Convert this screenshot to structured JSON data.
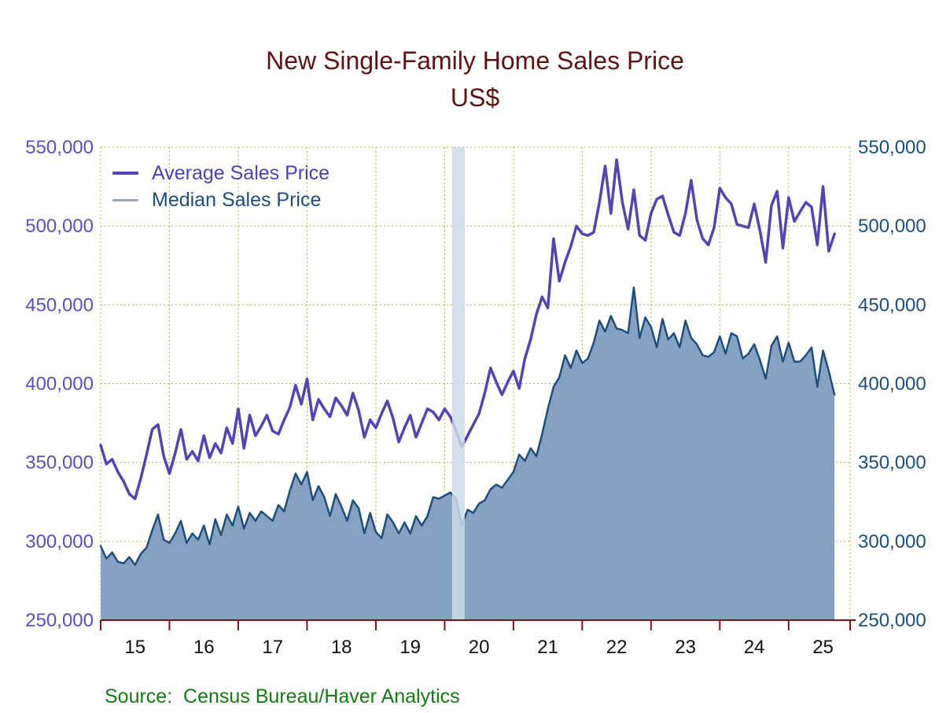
{
  "title": {
    "line1": "New Single-Family Home Sales Price",
    "line2": "US$"
  },
  "legend": {
    "average_label": "Average Sales Price",
    "median_label": "Median Sales Price"
  },
  "source_text": "Source:  Census Bureau/Haver Analytics",
  "colors": {
    "title": "#5e1212",
    "average_line": "#5443b5",
    "average_axis_labels": "#5a4fc0",
    "median_line": "#1d4e7e",
    "median_area_fill": "#87a1c2",
    "median_legend_swatch": "#9aa8b8",
    "median_axis_labels": "#1b4e7e",
    "recession_band": "#ccdae6",
    "gridline": "#b5b83a",
    "x_axis_line": "#7a1315",
    "x_tick_labels": "#111111",
    "source_text": "#147a14"
  },
  "chart_data": {
    "type": "line",
    "title": "New Single-Family Home Sales Price",
    "subtitle": "US$",
    "frequency": "monthly",
    "x_start": "2015-01",
    "x_end": "2025-09",
    "x_tick_labels": [
      "15",
      "16",
      "17",
      "18",
      "19",
      "20",
      "21",
      "22",
      "23",
      "24",
      "25"
    ],
    "ylim": [
      250000,
      550000
    ],
    "y_ticks": [
      250000,
      300000,
      350000,
      400000,
      450000,
      500000,
      550000
    ],
    "y_tick_labels": [
      "250,000",
      "300,000",
      "350,000",
      "400,000",
      "450,000",
      "500,000",
      "550,000"
    ],
    "grid": "dotted",
    "legend_position": "top-left",
    "recession_band": {
      "from": "2020-02",
      "to": "2020-04",
      "start_index": 61,
      "end_index": 63
    },
    "series": [
      {
        "name": "Average Sales Price",
        "color": "#5443b5",
        "values": [
          361000,
          349000,
          352000,
          344000,
          338000,
          330000,
          327000,
          340000,
          355000,
          371000,
          374000,
          354000,
          343000,
          356000,
          371000,
          352000,
          357000,
          351000,
          367000,
          353000,
          362000,
          356000,
          372000,
          362000,
          384000,
          359000,
          380000,
          367000,
          373000,
          380000,
          370000,
          368000,
          377000,
          385000,
          399000,
          387000,
          403000,
          377000,
          390000,
          384000,
          379000,
          391000,
          386000,
          380000,
          394000,
          383000,
          366000,
          377000,
          372000,
          381000,
          389000,
          378000,
          363000,
          372000,
          380000,
          366000,
          375000,
          384000,
          382000,
          377000,
          384000,
          379000,
          370000,
          360000,
          367000,
          374000,
          381000,
          394000,
          410000,
          401000,
          393000,
          401000,
          408000,
          397000,
          416000,
          428000,
          444000,
          455000,
          448000,
          492000,
          465000,
          477000,
          487000,
          500000,
          495000,
          494000,
          496000,
          515000,
          538000,
          508000,
          542000,
          515000,
          498000,
          523000,
          494000,
          491000,
          508000,
          517000,
          519000,
          507000,
          496000,
          494000,
          508000,
          529000,
          504000,
          492000,
          488000,
          499000,
          524000,
          518000,
          514000,
          501000,
          500000,
          499000,
          514000,
          497000,
          477000,
          513000,
          522000,
          486000,
          518000,
          503000,
          509000,
          515000,
          512000,
          488000,
          525000,
          484000,
          495000
        ]
      },
      {
        "name": "Median Sales Price",
        "color": "#1d4e7e",
        "fill": "#87a1c2",
        "values": [
          297000,
          289000,
          293000,
          287000,
          286000,
          290000,
          285000,
          292000,
          296000,
          307000,
          317000,
          301000,
          299000,
          305000,
          313000,
          299000,
          305000,
          301000,
          310000,
          298000,
          314000,
          304000,
          317000,
          310000,
          322000,
          308000,
          318000,
          313000,
          319000,
          316000,
          313000,
          323000,
          319000,
          332000,
          343000,
          336000,
          344000,
          326000,
          335000,
          328000,
          316000,
          330000,
          322000,
          313000,
          326000,
          321000,
          305000,
          318000,
          306000,
          302000,
          317000,
          312000,
          305000,
          312000,
          305000,
          316000,
          310000,
          316000,
          328000,
          327000,
          329000,
          331000,
          327000,
          310000,
          320000,
          318000,
          324000,
          326000,
          333000,
          336000,
          334000,
          339000,
          344000,
          355000,
          351000,
          359000,
          354000,
          368000,
          384000,
          398000,
          404000,
          418000,
          410000,
          421000,
          413000,
          416000,
          426000,
          440000,
          433000,
          443000,
          435000,
          434000,
          432000,
          461000,
          429000,
          442000,
          436000,
          423000,
          441000,
          428000,
          432000,
          423000,
          440000,
          429000,
          425000,
          418000,
          417000,
          420000,
          430000,
          419000,
          432000,
          430000,
          416000,
          419000,
          425000,
          415000,
          403000,
          424000,
          430000,
          414000,
          426000,
          414000,
          414000,
          418000,
          423000,
          398000,
          421000,
          408000,
          393000
        ]
      }
    ]
  }
}
